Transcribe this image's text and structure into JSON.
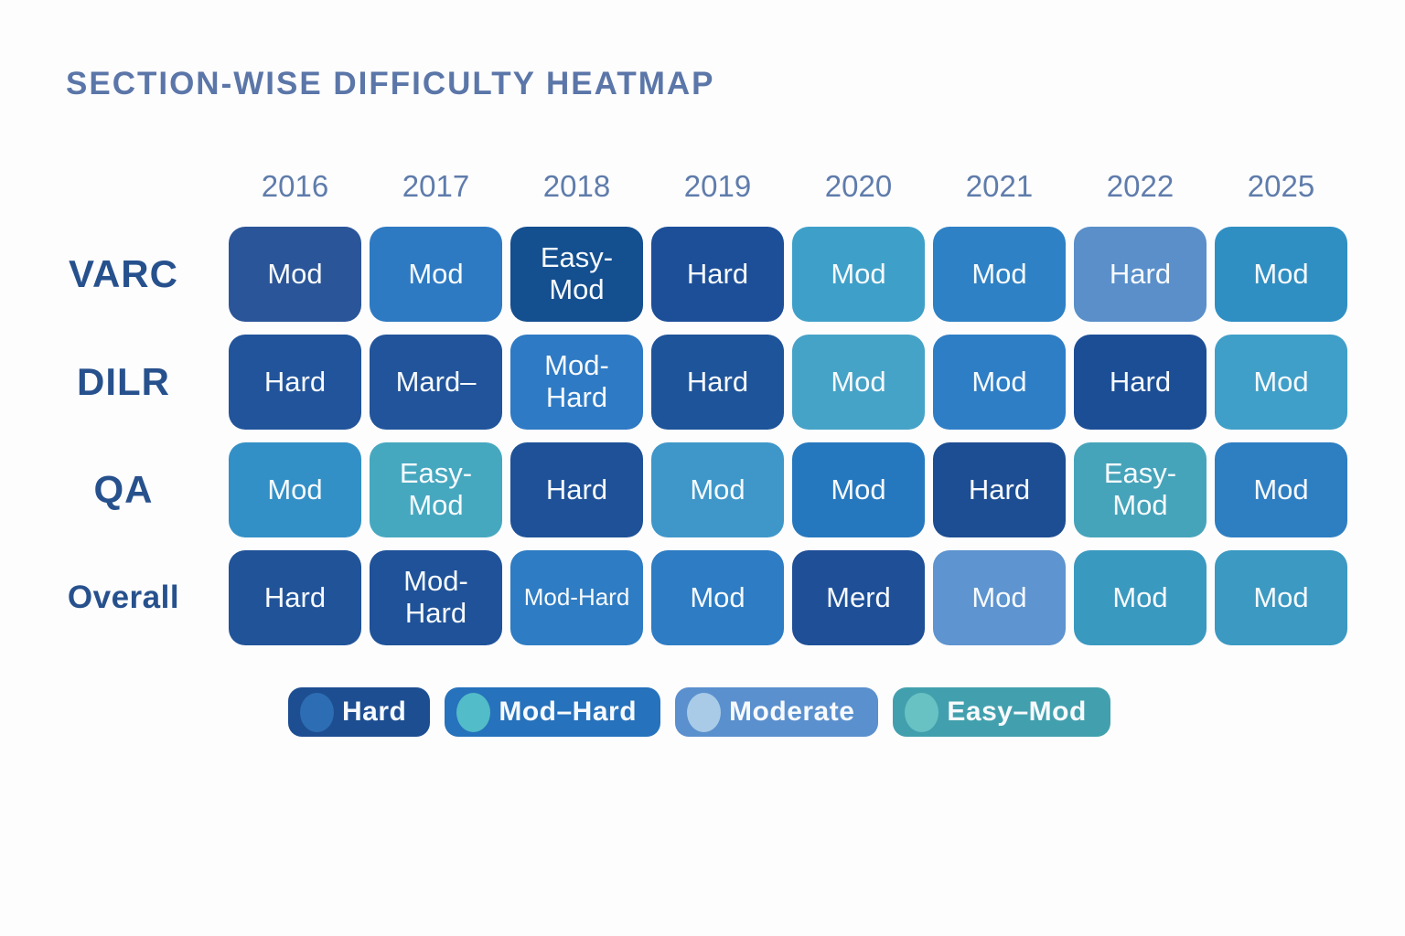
{
  "title": "SECTION-WISE DIFFICULTY HEATMAP",
  "colors": {
    "background": "#fdfdfe",
    "title_text": "#5b76a8",
    "year_text": "#5f7cab",
    "row_label_text": "#27518d",
    "cell_text": "#f7fafd"
  },
  "chart_data": {
    "type": "heatmap",
    "title": "SECTION-WISE DIFFICULTY HEATMAP",
    "columns": [
      "2016",
      "2017",
      "2018",
      "2019",
      "2020",
      "2021",
      "2022",
      "2025"
    ],
    "rows": [
      {
        "label": "VARC",
        "cells": [
          {
            "text": "Mod",
            "color": "#2b5599"
          },
          {
            "text": "Mod",
            "color": "#2e7ac2"
          },
          {
            "text": "Easy-\nMod",
            "color": "#144f90"
          },
          {
            "text": "Hard",
            "color": "#1d4f99"
          },
          {
            "text": "Mod",
            "color": "#3ea0c9"
          },
          {
            "text": "Mod",
            "color": "#2e81c4"
          },
          {
            "text": "Hard",
            "color": "#5a8fca"
          },
          {
            "text": "Mod",
            "color": "#2f8fc3"
          }
        ]
      },
      {
        "label": "DILR",
        "cells": [
          {
            "text": "Hard",
            "color": "#21549b"
          },
          {
            "text": "Mard–",
            "color": "#21549b"
          },
          {
            "text": "Mod-\nHard",
            "color": "#2e7ac4"
          },
          {
            "text": "Hard",
            "color": "#1e5499"
          },
          {
            "text": "Mod",
            "color": "#46a3c8"
          },
          {
            "text": "Mod",
            "color": "#2e7ec6"
          },
          {
            "text": "Hard",
            "color": "#1c4e96"
          },
          {
            "text": "Mod",
            "color": "#3f9fc8"
          }
        ]
      },
      {
        "label": "QA",
        "cells": [
          {
            "text": "Mod",
            "color": "#3390c6"
          },
          {
            "text": "Easy-\nMod",
            "color": "#46a8bf"
          },
          {
            "text": "Hard",
            "color": "#1e5198"
          },
          {
            "text": "Mod",
            "color": "#3f97c9"
          },
          {
            "text": "Mod",
            "color": "#2678be"
          },
          {
            "text": "Hard",
            "color": "#1d4d92"
          },
          {
            "text": "Easy-\nMod",
            "color": "#46a4ba"
          },
          {
            "text": "Mod",
            "color": "#2e7ec2"
          }
        ]
      },
      {
        "label": "Overall",
        "cells": [
          {
            "text": "Hard",
            "color": "#215399"
          },
          {
            "text": "Mod-\nHard",
            "color": "#1f5299"
          },
          {
            "text": "Mod-Hard",
            "color": "#2e7cc3"
          },
          {
            "text": "Mod",
            "color": "#2e7cc3"
          },
          {
            "text": "Merd",
            "color": "#1e4f97"
          },
          {
            "text": "Mod",
            "color": "#5e94cf"
          },
          {
            "text": "Mod",
            "color": "#3a99bf"
          },
          {
            "text": "Mod",
            "color": "#3b99c2"
          }
        ]
      }
    ],
    "legend_position": "bottom",
    "legend": [
      {
        "label": "Hard",
        "pill_color": "#1d4e92",
        "dot_color": "#2d6db3"
      },
      {
        "label": "Mod–Hard",
        "pill_color": "#2672bc",
        "dot_color": "#52bcc8"
      },
      {
        "label": "Moderate",
        "pill_color": "#5a90ce",
        "dot_color": "#a9cbe7"
      },
      {
        "label": "Easy–Mod",
        "pill_color": "#42a0ae",
        "dot_color": "#68c2c3"
      }
    ]
  }
}
